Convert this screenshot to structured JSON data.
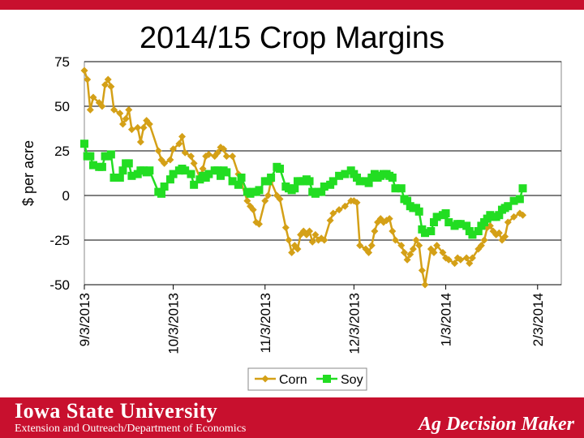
{
  "header": {
    "title": "2014/15 Crop Margins"
  },
  "footer": {
    "university": "Iowa State University",
    "department": "Extension and Outreach/Department of Economics",
    "brand": "Ag Decision Maker"
  },
  "colors": {
    "corn": "#d4a017",
    "soy": "#22dd22",
    "brand_red": "#c8102e"
  },
  "chart_data": {
    "type": "line",
    "title": "2014/15 Crop Margins",
    "xlabel": "",
    "ylabel": "$ per acre",
    "ylim": [
      -50,
      75
    ],
    "yticks": [
      75,
      50,
      25,
      0,
      -25,
      -50
    ],
    "ytick_labels": [
      "75",
      "50",
      "25",
      "0",
      "-25",
      "-50"
    ],
    "xlim": [
      0,
      161
    ],
    "xticks": [
      0,
      30,
      61,
      91,
      122,
      153
    ],
    "xtick_labels": [
      "9/3/2013",
      "10/3/2013",
      "11/3/2013",
      "12/3/2013",
      "1/3/2014",
      "2/3/2014"
    ],
    "grid": true,
    "legend": {
      "position": "bottom",
      "entries": [
        "Corn",
        "Soy"
      ]
    },
    "series": [
      {
        "name": "Corn",
        "color": "#d4a017",
        "marker": "diamond",
        "points": [
          [
            0,
            70
          ],
          [
            1,
            65
          ],
          [
            2,
            48
          ],
          [
            3,
            55
          ],
          [
            5,
            52
          ],
          [
            6,
            50
          ],
          [
            7,
            62
          ],
          [
            8,
            65
          ],
          [
            9,
            61
          ],
          [
            10,
            48
          ],
          [
            12,
            46
          ],
          [
            13,
            40
          ],
          [
            14,
            43
          ],
          [
            15,
            48
          ],
          [
            16,
            37
          ],
          [
            18,
            38
          ],
          [
            19,
            30
          ],
          [
            20,
            38
          ],
          [
            21,
            42
          ],
          [
            22,
            40
          ],
          [
            25,
            25
          ],
          [
            26,
            20
          ],
          [
            27,
            18
          ],
          [
            29,
            20
          ],
          [
            30,
            26
          ],
          [
            32,
            29
          ],
          [
            33,
            33
          ],
          [
            34,
            24
          ],
          [
            36,
            22
          ],
          [
            37,
            18
          ],
          [
            39,
            10
          ],
          [
            40,
            15
          ],
          [
            41,
            22
          ],
          [
            42,
            23
          ],
          [
            44,
            22
          ],
          [
            45,
            24
          ],
          [
            46,
            27
          ],
          [
            47,
            26
          ],
          [
            48,
            22
          ],
          [
            50,
            22
          ],
          [
            52,
            12
          ],
          [
            53,
            7
          ],
          [
            55,
            -3
          ],
          [
            56,
            -6
          ],
          [
            57,
            -8
          ],
          [
            58,
            -15
          ],
          [
            59,
            -16
          ],
          [
            61,
            -3
          ],
          [
            62,
            0
          ],
          [
            63,
            8
          ],
          [
            65,
            0
          ],
          [
            66,
            -2
          ],
          [
            68,
            -18
          ],
          [
            69,
            -25
          ],
          [
            70,
            -32
          ],
          [
            71,
            -28
          ],
          [
            72,
            -30
          ],
          [
            73,
            -22
          ],
          [
            74,
            -20
          ],
          [
            75,
            -22
          ],
          [
            76,
            -20
          ],
          [
            77,
            -26
          ],
          [
            78,
            -22
          ],
          [
            79,
            -25
          ],
          [
            80,
            -24
          ],
          [
            81,
            -25
          ],
          [
            83,
            -14
          ],
          [
            84,
            -10
          ],
          [
            86,
            -8
          ],
          [
            88,
            -6
          ],
          [
            90,
            -3
          ],
          [
            91,
            -3
          ],
          [
            92,
            -4
          ],
          [
            93,
            -28
          ],
          [
            95,
            -30
          ],
          [
            96,
            -32
          ],
          [
            97,
            -28
          ],
          [
            98,
            -20
          ],
          [
            99,
            -15
          ],
          [
            100,
            -13
          ],
          [
            101,
            -15
          ],
          [
            102,
            -14
          ],
          [
            103,
            -13
          ],
          [
            104,
            -20
          ],
          [
            105,
            -25
          ],
          [
            107,
            -28
          ],
          [
            108,
            -32
          ],
          [
            109,
            -36
          ],
          [
            110,
            -33
          ],
          [
            111,
            -30
          ],
          [
            112,
            -25
          ],
          [
            113,
            -28
          ],
          [
            114,
            -42
          ],
          [
            115,
            -50
          ],
          [
            117,
            -30
          ],
          [
            118,
            -32
          ],
          [
            119,
            -28
          ],
          [
            121,
            -32
          ],
          [
            122,
            -35
          ],
          [
            123,
            -36
          ],
          [
            125,
            -38
          ],
          [
            126,
            -35
          ],
          [
            127,
            -36
          ],
          [
            129,
            -35
          ],
          [
            130,
            -38
          ],
          [
            131,
            -35
          ],
          [
            133,
            -30
          ],
          [
            134,
            -28
          ],
          [
            135,
            -25
          ],
          [
            136,
            -18
          ],
          [
            137,
            -17
          ],
          [
            138,
            -20
          ],
          [
            139,
            -22
          ],
          [
            140,
            -21
          ],
          [
            141,
            -25
          ],
          [
            142,
            -23
          ],
          [
            143,
            -15
          ],
          [
            145,
            -12
          ],
          [
            147,
            -10
          ],
          [
            148,
            -11
          ]
        ]
      },
      {
        "name": "Soy",
        "color": "#22dd22",
        "marker": "square",
        "points": [
          [
            0,
            29
          ],
          [
            1,
            22
          ],
          [
            2,
            22
          ],
          [
            3,
            17
          ],
          [
            5,
            16
          ],
          [
            6,
            16
          ],
          [
            7,
            22
          ],
          [
            8,
            22
          ],
          [
            9,
            23
          ],
          [
            10,
            10
          ],
          [
            12,
            10
          ],
          [
            13,
            14
          ],
          [
            14,
            18
          ],
          [
            15,
            18
          ],
          [
            16,
            11
          ],
          [
            18,
            12
          ],
          [
            19,
            14
          ],
          [
            20,
            14
          ],
          [
            21,
            13
          ],
          [
            22,
            14
          ],
          [
            25,
            2
          ],
          [
            26,
            1
          ],
          [
            27,
            5
          ],
          [
            29,
            9
          ],
          [
            30,
            12
          ],
          [
            32,
            14
          ],
          [
            33,
            15
          ],
          [
            34,
            14
          ],
          [
            36,
            12
          ],
          [
            37,
            6
          ],
          [
            39,
            9
          ],
          [
            40,
            11
          ],
          [
            41,
            10
          ],
          [
            42,
            12
          ],
          [
            44,
            14
          ],
          [
            45,
            14
          ],
          [
            46,
            11
          ],
          [
            47,
            14
          ],
          [
            48,
            13
          ],
          [
            50,
            8
          ],
          [
            52,
            6
          ],
          [
            53,
            10
          ],
          [
            55,
            2
          ],
          [
            56,
            1
          ],
          [
            57,
            2
          ],
          [
            58,
            2
          ],
          [
            59,
            3
          ],
          [
            61,
            8
          ],
          [
            62,
            8
          ],
          [
            63,
            10
          ],
          [
            65,
            16
          ],
          [
            66,
            15
          ],
          [
            68,
            5
          ],
          [
            69,
            4
          ],
          [
            70,
            3
          ],
          [
            71,
            4
          ],
          [
            72,
            8
          ],
          [
            73,
            8
          ],
          [
            74,
            8
          ],
          [
            75,
            9
          ],
          [
            76,
            8
          ],
          [
            77,
            2
          ],
          [
            78,
            1
          ],
          [
            79,
            2
          ],
          [
            80,
            2
          ],
          [
            81,
            5
          ],
          [
            83,
            6
          ],
          [
            84,
            8
          ],
          [
            86,
            11
          ],
          [
            88,
            12
          ],
          [
            90,
            14
          ],
          [
            91,
            12
          ],
          [
            92,
            10
          ],
          [
            93,
            8
          ],
          [
            95,
            8
          ],
          [
            96,
            7
          ],
          [
            97,
            10
          ],
          [
            98,
            12
          ],
          [
            99,
            10
          ],
          [
            100,
            11
          ],
          [
            101,
            12
          ],
          [
            102,
            12
          ],
          [
            103,
            11
          ],
          [
            104,
            10
          ],
          [
            105,
            4
          ],
          [
            107,
            4
          ],
          [
            108,
            -2
          ],
          [
            109,
            -3
          ],
          [
            110,
            -6
          ],
          [
            111,
            -7
          ],
          [
            112,
            -7
          ],
          [
            113,
            -9
          ],
          [
            114,
            -19
          ],
          [
            115,
            -21
          ],
          [
            117,
            -20
          ],
          [
            118,
            -15
          ],
          [
            119,
            -12
          ],
          [
            121,
            -11
          ],
          [
            122,
            -10
          ],
          [
            123,
            -15
          ],
          [
            125,
            -17
          ],
          [
            126,
            -16
          ],
          [
            127,
            -16
          ],
          [
            129,
            -17
          ],
          [
            130,
            -20
          ],
          [
            131,
            -22
          ],
          [
            133,
            -20
          ],
          [
            134,
            -17
          ],
          [
            135,
            -15
          ],
          [
            136,
            -13
          ],
          [
            137,
            -11
          ],
          [
            138,
            -12
          ],
          [
            139,
            -12
          ],
          [
            140,
            -11
          ],
          [
            141,
            -8
          ],
          [
            142,
            -7
          ],
          [
            143,
            -6
          ],
          [
            145,
            -3
          ],
          [
            147,
            -2
          ],
          [
            148,
            4
          ]
        ]
      }
    ]
  }
}
